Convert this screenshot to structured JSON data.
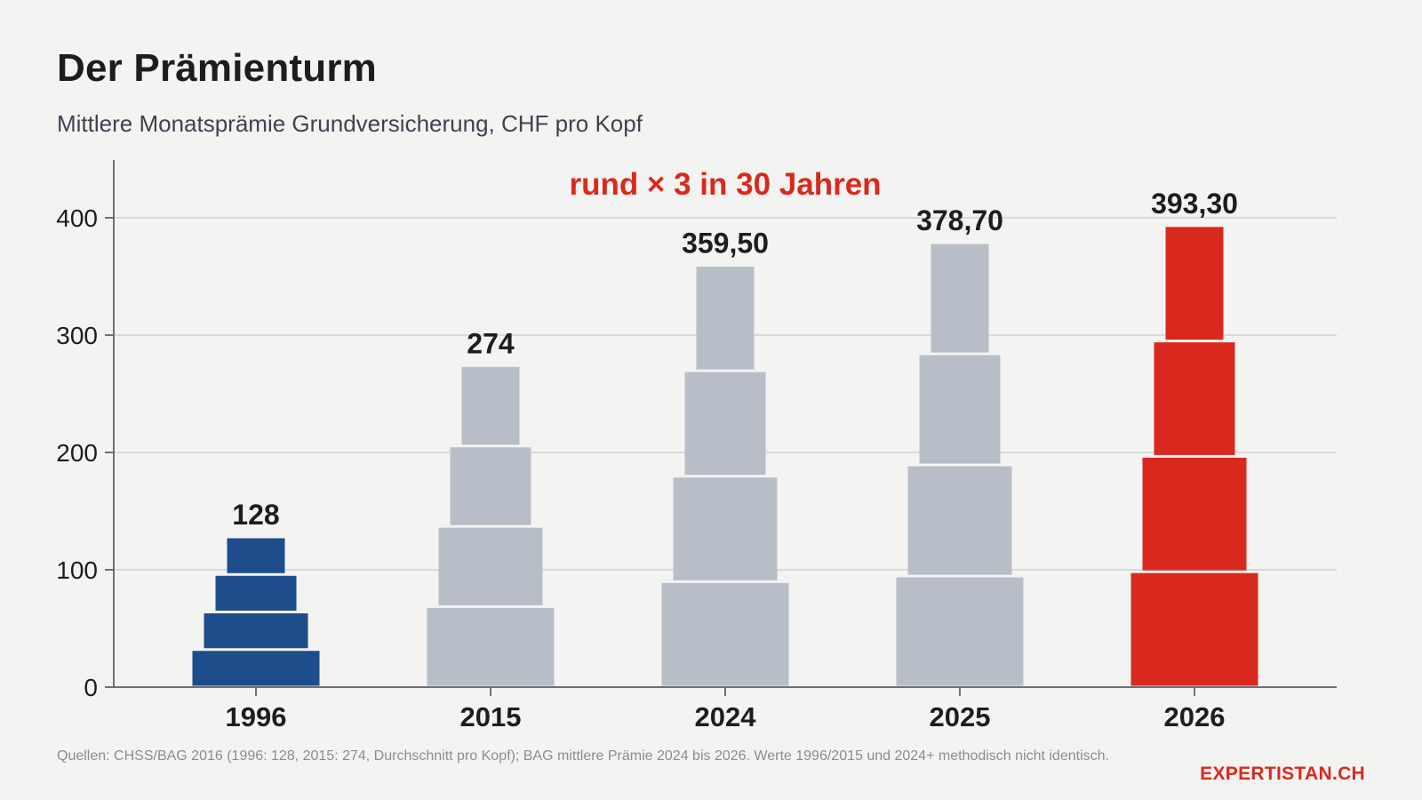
{
  "title": "Der Prämienturm",
  "subtitle": "Mittlere Monatsprämie Grundversicherung, CHF pro Kopf",
  "annotation": "rund × 3 in 30 Jahren",
  "source": "Quellen: CHSS/BAG 2016 (1996: 128, 2015: 274, Durchschnitt pro Kopf); BAG mittlere Prämie 2024 bis 2026. Werte 1996/2015 und 2024+ methodisch nicht identisch.",
  "brand": "EXPERTISTAN.CH",
  "colors": {
    "highlight_start": "#1e4d8c",
    "neutral": "#b8bec8",
    "highlight_end": "#d9291e",
    "grid": "#d7d9dd",
    "axis": "#6e7079"
  },
  "chart_data": {
    "type": "bar",
    "style": "stacked-tower-4-blocks",
    "categories": [
      "1996",
      "2015",
      "2024",
      "2025",
      "2026"
    ],
    "values": [
      128,
      274,
      359.5,
      378.7,
      393.3
    ],
    "value_labels": [
      "128",
      "274",
      "359,50",
      "378,70",
      "393,30"
    ],
    "bar_colors": [
      "highlight_start",
      "neutral",
      "neutral",
      "neutral",
      "highlight_end"
    ],
    "ylim": [
      0,
      450
    ],
    "yticks": [
      0,
      100,
      200,
      300,
      400
    ],
    "ytick_labels": [
      "0",
      "100",
      "200",
      "300",
      "400"
    ],
    "grid": true,
    "xlabel": "",
    "ylabel": ""
  }
}
